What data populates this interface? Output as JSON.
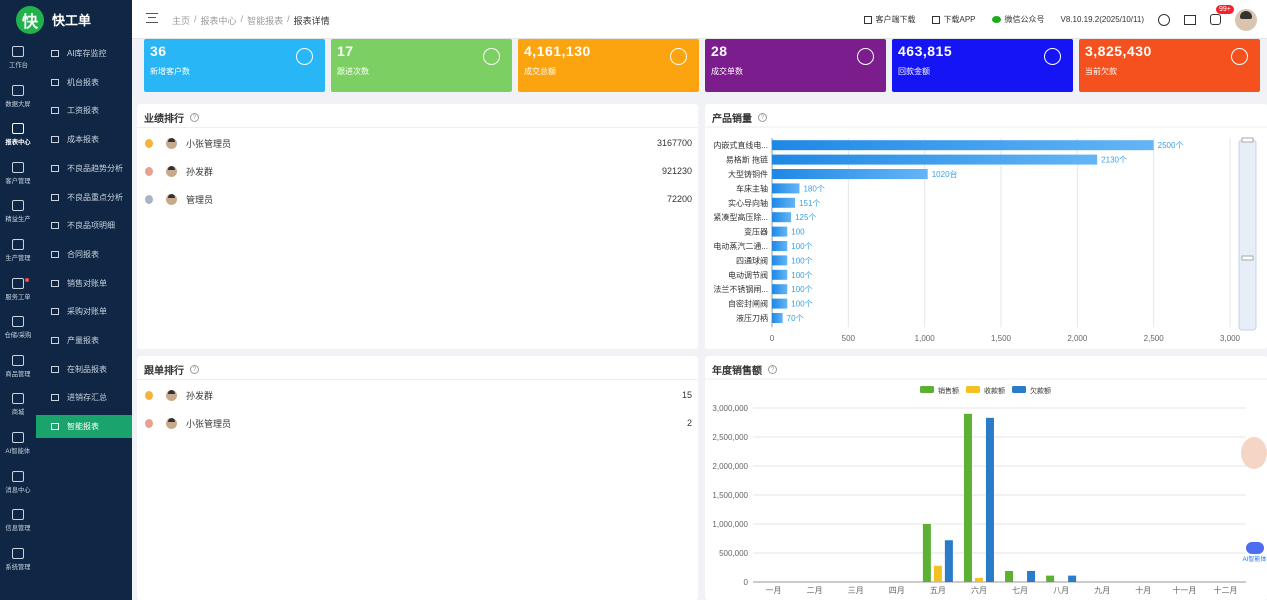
{
  "app": {
    "name": "快工单",
    "logo_char": "快"
  },
  "rail": [
    {
      "icon": "workbench-icon",
      "label": "工作台"
    },
    {
      "icon": "monitor-icon",
      "label": "数据大屏"
    },
    {
      "icon": "share-icon",
      "label": "报表中心",
      "active": true
    },
    {
      "icon": "user-icon",
      "label": "客户管理"
    },
    {
      "icon": "layers-icon",
      "label": "精益生产"
    },
    {
      "icon": "cube-icon",
      "label": "生产管理"
    },
    {
      "icon": "service-icon",
      "label": "服务工单",
      "dot": true
    },
    {
      "icon": "home-icon",
      "label": "仓储/采购"
    },
    {
      "icon": "box-icon",
      "label": "商品管理"
    },
    {
      "icon": "store-icon",
      "label": "商城"
    },
    {
      "icon": "ai-icon",
      "label": "AI智能体"
    },
    {
      "icon": "speaker-icon",
      "label": "消息中心"
    },
    {
      "icon": "info-icon",
      "label": "信息管理"
    },
    {
      "icon": "gear-icon",
      "label": "系统管理"
    }
  ],
  "submenu": [
    {
      "label": "AI库存监控"
    },
    {
      "label": "机台报表"
    },
    {
      "label": "工资报表"
    },
    {
      "label": "成本报表"
    },
    {
      "label": "不良品趋势分析"
    },
    {
      "label": "不良品重点分析"
    },
    {
      "label": "不良品项明细"
    },
    {
      "label": "合同报表"
    },
    {
      "label": "销售对账单"
    },
    {
      "label": "采购对账单"
    },
    {
      "label": "产量报表"
    },
    {
      "label": "在制品报表"
    },
    {
      "label": "进销存汇总"
    },
    {
      "label": "智能报表",
      "active": true
    }
  ],
  "breadcrumb": {
    "home": "主页",
    "sep": "/",
    "c1": "报表中心",
    "c2": "智能报表",
    "current": "报表详情"
  },
  "topbar": {
    "client_download": "客户端下载",
    "download_app": "下载APP",
    "wechat": "微信公众号",
    "version": "V8.10.19.2(2025/10/11)",
    "notif_badge": "99+"
  },
  "stats": [
    {
      "value": "36",
      "label": "新增客户数",
      "color": "#29b6f6",
      "icon": "add-user-icon"
    },
    {
      "value": "17",
      "label": "跟进次数",
      "color": "#7ccf63",
      "icon": "edit-user-icon"
    },
    {
      "value": "4,161,130",
      "label": "成交总额",
      "color": "#fba40f",
      "icon": "yuan-icon"
    },
    {
      "value": "28",
      "label": "成交单数",
      "color": "#7b1d8c",
      "icon": "clipboard-check-icon"
    },
    {
      "value": "463,815",
      "label": "回款金额",
      "color": "#1414f5",
      "icon": "yuan-return-icon"
    },
    {
      "value": "3,825,430",
      "label": "当前欠款",
      "color": "#f4511e",
      "icon": "yuan-icon"
    }
  ],
  "performance": {
    "title": "业绩排行",
    "rows": [
      {
        "name": "小张管理员",
        "value": "3167700",
        "medal": "#f7b23b"
      },
      {
        "name": "孙发群",
        "value": "921230",
        "medal": "#e8a090"
      },
      {
        "name": "管理员",
        "value": "72200",
        "medal": "#a9b4c6"
      }
    ]
  },
  "followup": {
    "title": "跟单排行",
    "rows": [
      {
        "name": "孙发群",
        "value": "15",
        "medal": "#f7b23b"
      },
      {
        "name": "小张管理员",
        "value": "2",
        "medal": "#e8a090"
      }
    ]
  },
  "product_sales": {
    "title": "产品销量"
  },
  "annual_sales": {
    "title": "年度销售额"
  },
  "chart_data": [
    {
      "type": "bar",
      "orientation": "horizontal",
      "title": "产品销量",
      "categories": [
        "内嵌式直线电...",
        "易格斯 拖链",
        "大型铸铜件",
        "车床主轴",
        "实心导向轴",
        "紧凑型高压除...",
        "变压器",
        "电动蒸汽二通...",
        "四通球阀",
        "电动调节阀",
        "法兰不锈钢闸...",
        "自密封闸阀",
        "液压刀柄"
      ],
      "values": [
        2500,
        2130,
        1020,
        180,
        151,
        125,
        100,
        100,
        100,
        100,
        100,
        100,
        70
      ],
      "data_labels": [
        "2500个",
        "2130个",
        "1020台",
        "180个",
        "151个",
        "125个",
        "100",
        "100个",
        "100个",
        "100个",
        "100个",
        "100个",
        "70个"
      ],
      "xlim": [
        0,
        3000
      ],
      "x_ticks": [
        "0",
        "500",
        "1,000",
        "1,500",
        "2,000",
        "2,500",
        "3,000"
      ],
      "grid": true
    },
    {
      "type": "bar",
      "title": "年度销售额",
      "categories": [
        "一月",
        "二月",
        "三月",
        "四月",
        "五月",
        "六月",
        "七月",
        "八月",
        "九月",
        "十月",
        "十一月",
        "十二月"
      ],
      "series": [
        {
          "name": "销售额",
          "color": "#5cb034",
          "values": [
            0,
            0,
            0,
            0,
            1000000,
            2900000,
            190000,
            110000,
            0,
            0,
            0,
            0
          ]
        },
        {
          "name": "收款额",
          "color": "#f4c023",
          "values": [
            0,
            0,
            0,
            0,
            280000,
            70000,
            0,
            0,
            0,
            0,
            0,
            0
          ]
        },
        {
          "name": "欠款额",
          "color": "#2a7bc8",
          "values": [
            0,
            0,
            0,
            0,
            720000,
            2830000,
            190000,
            110000,
            0,
            0,
            0,
            0
          ]
        }
      ],
      "ylim": [
        0,
        3000000
      ],
      "y_ticks": [
        "0",
        "500,000",
        "1,000,000",
        "1,500,000",
        "2,000,000",
        "2,500,000",
        "3,000,000"
      ],
      "legend": "top-center",
      "grid": true
    }
  ],
  "floating": {
    "ai_label": "AI智能体"
  }
}
